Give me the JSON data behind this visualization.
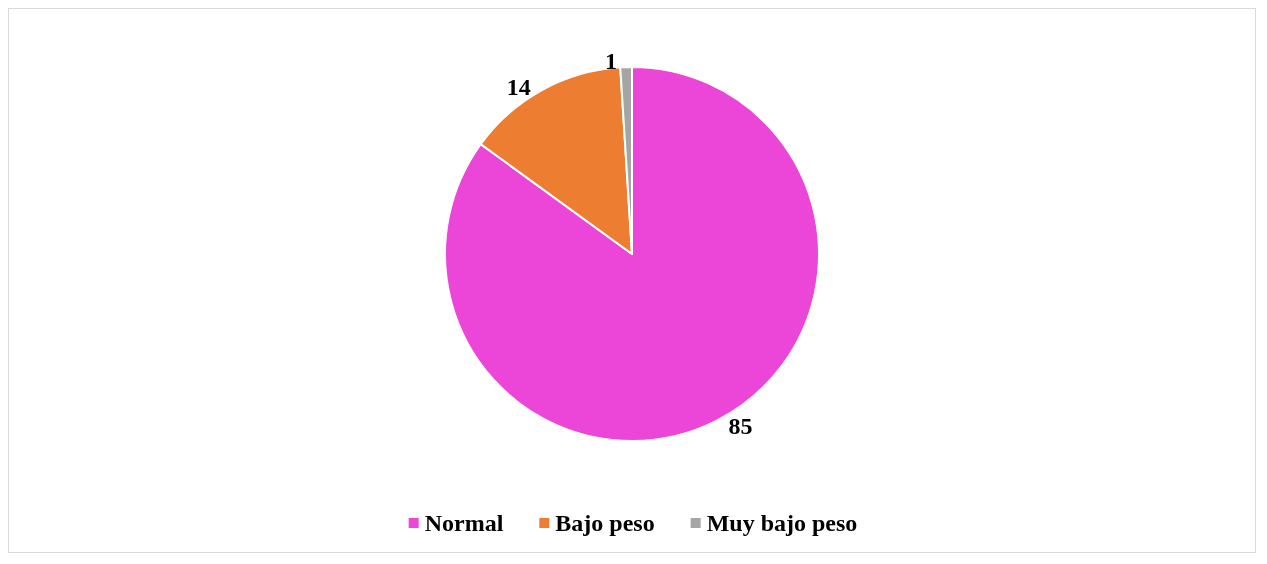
{
  "chart_data": {
    "type": "pie",
    "categories": [
      "Normal",
      "Bajo peso",
      "Muy bajo peso"
    ],
    "values": [
      85,
      14,
      1
    ],
    "colors": [
      "#ec46d8",
      "#ed7d31",
      "#a5a5a5"
    ],
    "data_labels": true,
    "legend": "bottom"
  }
}
